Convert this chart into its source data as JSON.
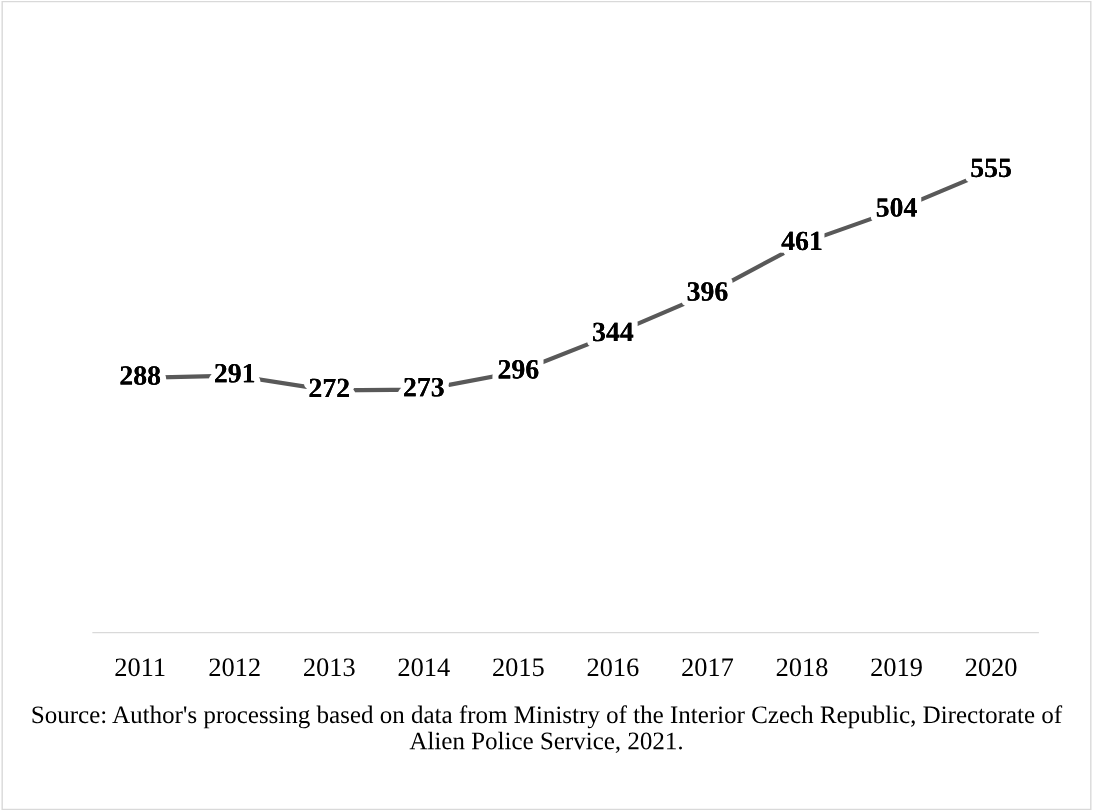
{
  "chart_data": {
    "type": "line",
    "categories": [
      "2011",
      "2012",
      "2013",
      "2014",
      "2015",
      "2016",
      "2017",
      "2018",
      "2019",
      "2020"
    ],
    "series": [
      {
        "color": "#595959",
        "values": [
          288,
          291,
          272,
          273,
          296,
          344,
          396,
          461,
          504,
          555
        ]
      }
    ],
    "data_labels": true,
    "grid": false,
    "legend": false,
    "line_style": "solid",
    "tick_labels": "x",
    "annotations": [
      "Source: Author's processing based on data from Ministry of the Interior Czech Republic, Directorate of Alien Police Service, 2021."
    ]
  }
}
